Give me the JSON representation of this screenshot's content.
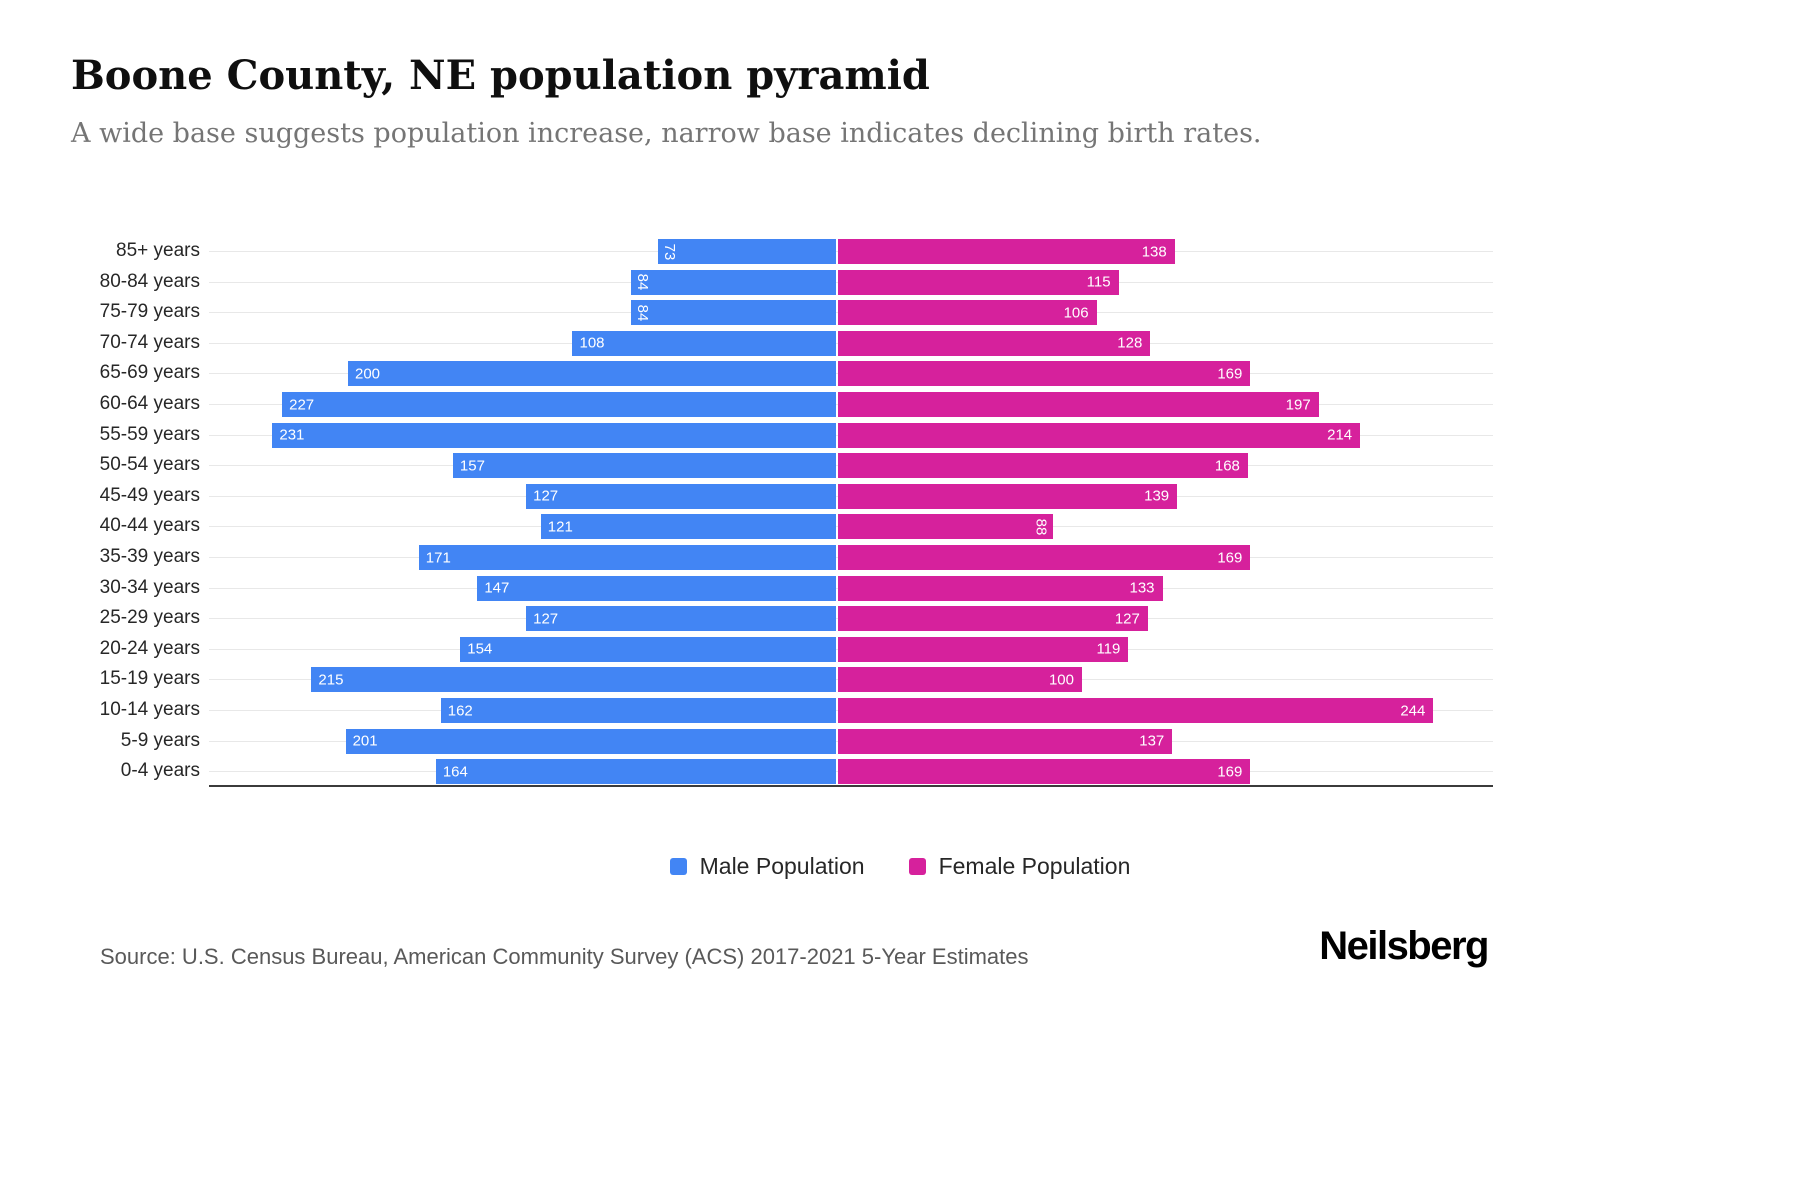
{
  "header": {
    "title": "Boone County, NE population pyramid",
    "subtitle": "A wide base suggests population increase, narrow base indicates declining birth rates."
  },
  "chart_data": {
    "type": "bar",
    "variant": "population-pyramid",
    "orientation": "horizontal",
    "grid": "horizontal",
    "legend_position": "bottom",
    "value_axis_max_each_side": 250,
    "categories": [
      "85+ years",
      "80-84 years",
      "75-79 years",
      "70-74 years",
      "65-69 years",
      "60-64 years",
      "55-59 years",
      "50-54 years",
      "45-49 years",
      "40-44 years",
      "35-39 years",
      "30-34 years",
      "25-29 years",
      "20-24 years",
      "15-19 years",
      "10-14 years",
      "5-9 years",
      "0-4 years"
    ],
    "series": [
      {
        "name": "Male Population",
        "side": "left",
        "color": "#4285F4",
        "values": [
          73,
          84,
          84,
          108,
          200,
          227,
          231,
          157,
          127,
          121,
          171,
          147,
          127,
          154,
          215,
          162,
          201,
          164
        ]
      },
      {
        "name": "Female Population",
        "side": "right",
        "color": "#D6219C",
        "values": [
          138,
          115,
          106,
          128,
          169,
          197,
          214,
          168,
          139,
          88,
          169,
          133,
          127,
          119,
          100,
          244,
          137,
          169
        ]
      }
    ]
  },
  "legend": {
    "items": [
      {
        "label": "Male Population",
        "color": "#4285F4"
      },
      {
        "label": "Female Population",
        "color": "#D6219C"
      }
    ]
  },
  "footer": {
    "source": "Source: U.S. Census Bureau, American Community Survey (ACS) 2017-2021 5-Year Estimates",
    "brand": "Neilsberg"
  }
}
